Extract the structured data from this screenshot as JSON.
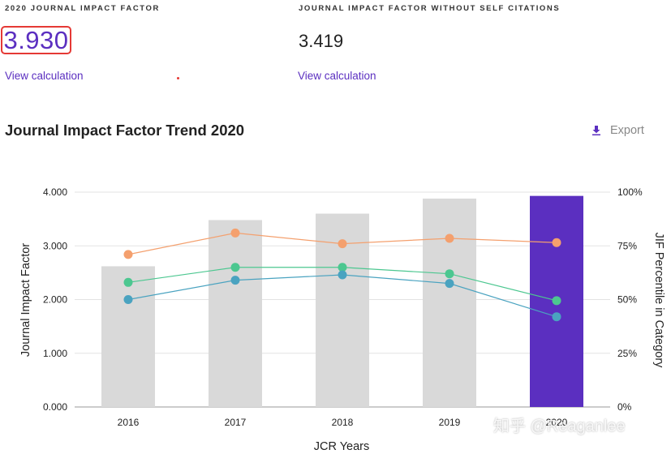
{
  "metrics": {
    "jif_label": "2020 JOURNAL IMPACT FACTOR",
    "jif_value": "3.930",
    "jif_noself_label": "JOURNAL IMPACT FACTOR WITHOUT SELF CITATIONS",
    "jif_noself_value": "3.419",
    "view_calc_label": "View calculation"
  },
  "trend": {
    "title": "Journal Impact Factor Trend 2020",
    "export_label": "Export"
  },
  "watermark": "知乎 @Reaganlee",
  "colors": {
    "accent": "#5b2fc0",
    "bar_gray": "#d9d9d9",
    "highlight": "#e53935",
    "orange": "#f4a06e",
    "green": "#4cc790",
    "blue": "#4aa3c0"
  },
  "chart_data": {
    "type": "bar",
    "categories": [
      "2016",
      "2017",
      "2018",
      "2019",
      "2020"
    ],
    "xlabel": "JCR Years",
    "ylabel": "Journal Impact Factor",
    "y2label": "JIF Percentile in Category",
    "ylim": [
      0,
      4
    ],
    "y2lim": [
      0,
      100
    ],
    "yticks": [
      "0.000",
      "1.000",
      "2.000",
      "3.000",
      "4.000"
    ],
    "y2ticks": [
      "0%",
      "25%",
      "50%",
      "75%",
      "100%"
    ],
    "bars": [
      2.62,
      3.48,
      3.6,
      3.88,
      3.93
    ],
    "highlight_index": 4,
    "lines": [
      {
        "color": "#f4a06e",
        "values": [
          71,
          81,
          76,
          78.5,
          76.5
        ]
      },
      {
        "color": "#4cc790",
        "values": [
          58,
          65,
          65,
          62,
          49.5
        ]
      },
      {
        "color": "#4aa3c0",
        "values": [
          50,
          59,
          61.5,
          57.5,
          42
        ]
      }
    ],
    "grid": true
  }
}
